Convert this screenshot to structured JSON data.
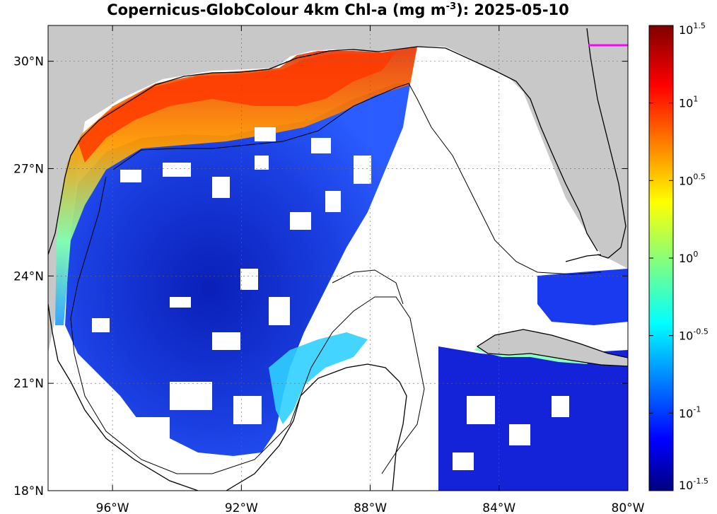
{
  "title": {
    "prefix": "Copernicus-GlobColour 4km Chl-a (mg m",
    "exponent": "-3",
    "suffix": "): 2025-05-10"
  },
  "map": {
    "lon_range": [
      -98,
      -80
    ],
    "lat_range": [
      18,
      31
    ],
    "x_ticks": [
      {
        "value": -96,
        "label": "96°W"
      },
      {
        "value": -92,
        "label": "92°W"
      },
      {
        "value": -88,
        "label": "88°W"
      },
      {
        "value": -84,
        "label": "84°W"
      },
      {
        "value": -80,
        "label": "80°W"
      }
    ],
    "y_ticks": [
      {
        "value": 30,
        "label": "30°N"
      },
      {
        "value": 27,
        "label": "27°N"
      },
      {
        "value": 24,
        "label": "24°N"
      },
      {
        "value": 21,
        "label": "21°N"
      },
      {
        "value": 18,
        "label": "18°N"
      }
    ],
    "grid": "dotted",
    "land_color": "#c8c8c8",
    "nodata_color": "#ffffff",
    "coast_color": "#000000"
  },
  "colorbar": {
    "scale": "log10",
    "range": [
      -1.5,
      1.5
    ],
    "colormap": "jet",
    "ticks": [
      {
        "base": "10",
        "exp": "1.5",
        "value": 1.5
      },
      {
        "base": "10",
        "exp": "1",
        "value": 1
      },
      {
        "base": "10",
        "exp": "0.5",
        "value": 0.5
      },
      {
        "base": "10",
        "exp": "0",
        "value": 0
      },
      {
        "base": "10",
        "exp": "-0.5",
        "value": -0.5
      },
      {
        "base": "10",
        "exp": "-1",
        "value": -1
      },
      {
        "base": "10",
        "exp": "-1.5",
        "value": -1.5
      }
    ]
  }
}
